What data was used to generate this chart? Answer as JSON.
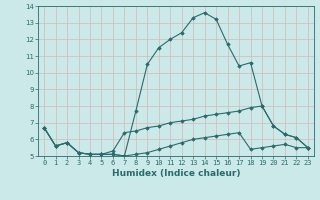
{
  "xlabel": "Humidex (Indice chaleur)",
  "ylabel": "",
  "xlim": [
    -0.5,
    23.5
  ],
  "ylim": [
    5,
    14
  ],
  "yticks": [
    5,
    6,
    7,
    8,
    9,
    10,
    11,
    12,
    13,
    14
  ],
  "xticks": [
    0,
    1,
    2,
    3,
    4,
    5,
    6,
    7,
    8,
    9,
    10,
    11,
    12,
    13,
    14,
    15,
    16,
    17,
    18,
    19,
    20,
    21,
    22,
    23
  ],
  "bg_color": "#cce9e9",
  "grid_color": "#b8d8d8",
  "line_color": "#2a6b6b",
  "line1_x": [
    0,
    1,
    2,
    3,
    4,
    5,
    6,
    7,
    8,
    9,
    10,
    11,
    12,
    13,
    14,
    15,
    16,
    17,
    18,
    19,
    20,
    21,
    22,
    23
  ],
  "line1_y": [
    6.7,
    5.6,
    5.8,
    5.2,
    5.1,
    5.1,
    5.1,
    5.0,
    7.7,
    10.5,
    11.5,
    12.0,
    12.4,
    13.3,
    13.6,
    13.2,
    11.7,
    10.4,
    10.6,
    8.0,
    6.8,
    6.3,
    6.1,
    5.5
  ],
  "line2_x": [
    0,
    1,
    2,
    3,
    4,
    5,
    6,
    7,
    8,
    9,
    10,
    11,
    12,
    13,
    14,
    15,
    16,
    17,
    18,
    19,
    20,
    21,
    22,
    23
  ],
  "line2_y": [
    6.7,
    5.6,
    5.8,
    5.2,
    5.1,
    5.1,
    5.3,
    6.4,
    6.5,
    6.7,
    6.8,
    7.0,
    7.1,
    7.2,
    7.4,
    7.5,
    7.6,
    7.7,
    7.9,
    8.0,
    6.8,
    6.3,
    6.1,
    5.5
  ],
  "line3_x": [
    0,
    1,
    2,
    3,
    4,
    5,
    6,
    7,
    8,
    9,
    10,
    11,
    12,
    13,
    14,
    15,
    16,
    17,
    18,
    19,
    20,
    21,
    22,
    23
  ],
  "line3_y": [
    6.7,
    5.6,
    5.8,
    5.2,
    5.1,
    5.1,
    5.1,
    5.0,
    5.1,
    5.2,
    5.4,
    5.6,
    5.8,
    6.0,
    6.1,
    6.2,
    6.3,
    6.4,
    5.4,
    5.5,
    5.6,
    5.7,
    5.5,
    5.5
  ],
  "marker": "D",
  "markersize": 1.8,
  "linewidth": 0.8,
  "xlabel_fontsize": 6.5,
  "tick_fontsize": 5.0
}
